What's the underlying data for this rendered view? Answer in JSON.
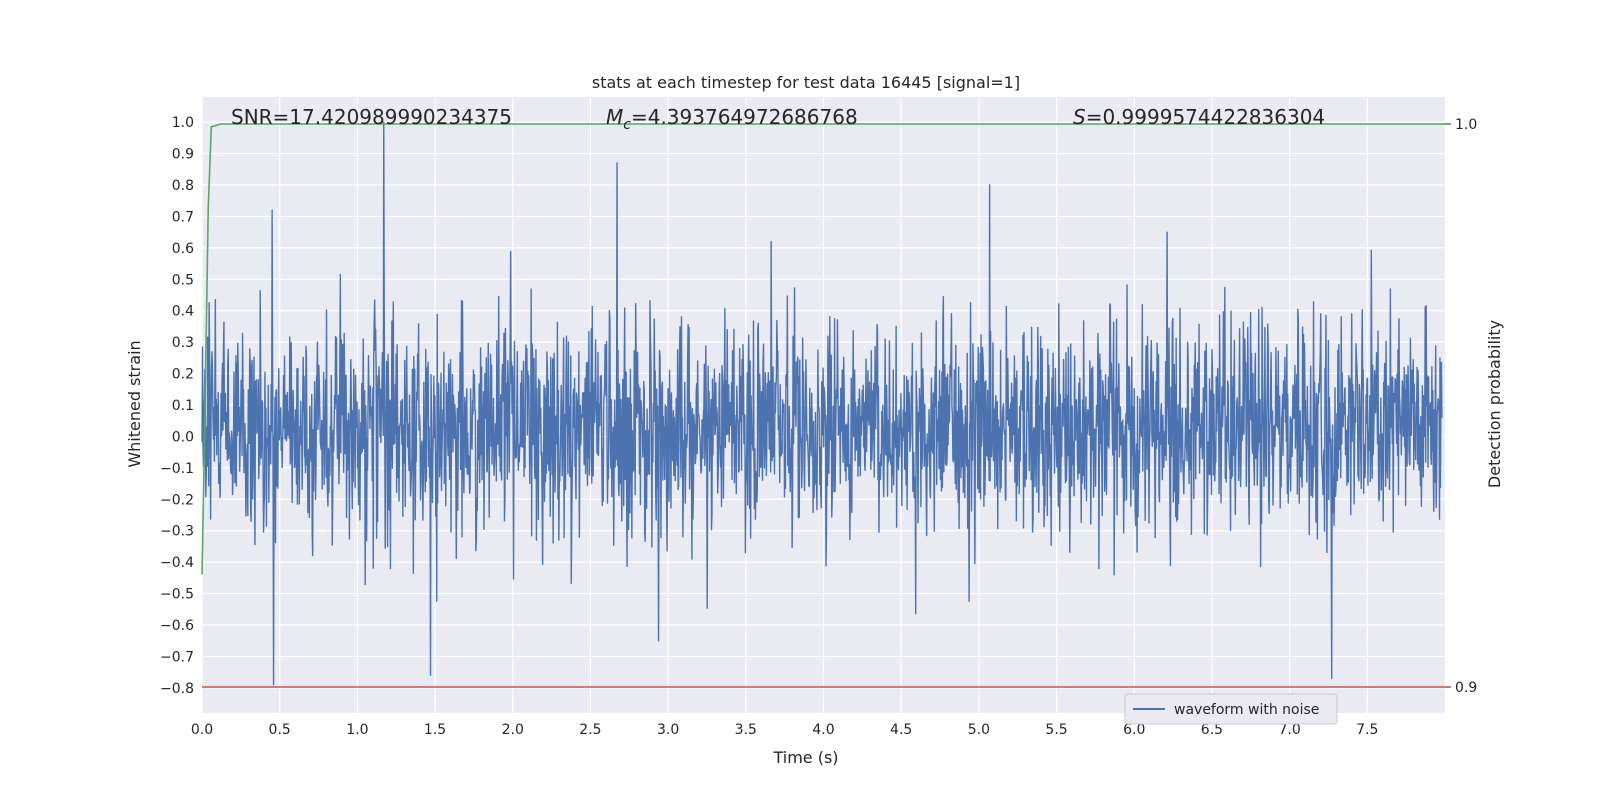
{
  "chart_data": {
    "type": "line",
    "title": "stats at each timestep for test data 16445 [signal=1]",
    "xlabel": "Time (s)",
    "ylabel": "Whitened strain",
    "y2label": "Detection probability",
    "xlim": [
      0.0,
      8.0
    ],
    "ylim": [
      -0.88,
      1.08
    ],
    "y2lim": [
      0.9,
      1.0
    ],
    "x_ticks": [
      "0.0",
      "0.5",
      "1.0",
      "1.5",
      "2.0",
      "2.5",
      "3.0",
      "3.5",
      "4.0",
      "4.5",
      "5.0",
      "5.5",
      "6.0",
      "6.5",
      "7.0",
      "7.5"
    ],
    "y_ticks": [
      "−0.8",
      "−0.7",
      "−0.6",
      "−0.5",
      "−0.4",
      "−0.3",
      "−0.2",
      "−0.1",
      "0.0",
      "0.1",
      "0.2",
      "0.3",
      "0.4",
      "0.5",
      "0.6",
      "0.7",
      "0.8",
      "0.9",
      "1.0"
    ],
    "y2_ticks": [
      "0.9",
      "1.0"
    ],
    "grid": true,
    "legend_placement": "lower-right",
    "annotations": {
      "snr": "SNR=17.420989990234375",
      "mc_symbol": "M",
      "mc_sub": "c",
      "mc_value": "=4.393764972686768",
      "s_symbol": "S",
      "s_value": "=0.9999574422836304"
    },
    "series": [
      {
        "name": "waveform with noise",
        "axis": "left",
        "color": "#4c72b0",
        "description_range": [
          -0.79,
          1.0
        ],
        "notable_peaks": [
          [
            1.17,
            1.0
          ],
          [
            2.67,
            0.87
          ],
          [
            5.07,
            0.8
          ],
          [
            0.45,
            0.72
          ],
          [
            0.46,
            -0.79
          ],
          [
            1.47,
            -0.76
          ],
          [
            7.27,
            -0.77
          ]
        ]
      },
      {
        "axis": "right",
        "color": "#55a868",
        "x": [
          0.0,
          0.02,
          0.04,
          0.06,
          0.12,
          8.0
        ],
        "y": [
          0.92,
          0.95,
          0.985,
          0.9995,
          1.0,
          1.0
        ]
      },
      {
        "axis": "right",
        "color": "#c44e52",
        "x": [
          0.0,
          8.0
        ],
        "y": [
          0.9,
          0.9
        ]
      }
    ]
  }
}
